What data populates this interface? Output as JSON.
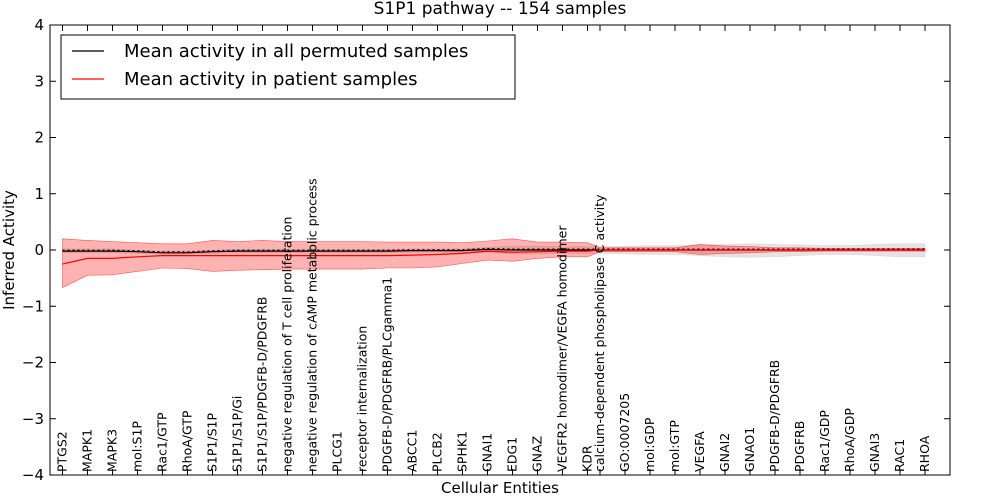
{
  "chart_data": {
    "type": "line",
    "title": "S1P1 pathway -- 154 samples",
    "xlabel": "Cellular Entities",
    "ylabel": "Inferred Activity",
    "ylim": [
      -4,
      4
    ],
    "yticks": [
      -4,
      -3,
      -2,
      -1,
      0,
      1,
      2,
      3,
      4
    ],
    "ytick_labels": [
      "−4",
      "−3",
      "−2",
      "−1",
      "0",
      "1",
      "2",
      "3",
      "4"
    ],
    "grid": false,
    "legend_position": "top-left",
    "categories": [
      "PTGS2",
      "MAPK1",
      "MAPK3",
      "mol:S1P",
      "Rac1/GTP",
      "RhoA/GTP",
      "S1P1/S1P",
      "S1P1/S1P/Gi",
      "S1P1/S1P/PDGFB-D/PDGFRB",
      "negative regulation of T cell proliferation",
      "negative regulation of cAMP metabolic process",
      "PLCG1",
      "receptor internalization",
      "PDGFB-D/PDGFRB/PLCgamma1",
      "ABCC1",
      "PLCB2",
      "SPHK1",
      "GNAI1",
      "EDG1",
      "GNAZ",
      "VEGFR2 homodimer/VEGFA homodimer",
      "KDR",
      "calcium-dependent phospholipase C activity",
      "GO:0007205",
      "mol:GDP",
      "mol:GTP",
      "VEGFA",
      "GNAI2",
      "GNAO1",
      "PDGFB-D/PDGFRB",
      "PDGFRB",
      "Rac1/GDP",
      "RhoA/GDP",
      "GNAI3",
      "RAC1",
      "RHOA"
    ],
    "x_positions": [
      0,
      1,
      2,
      3,
      4,
      5,
      6,
      7,
      8,
      9,
      10,
      11,
      12,
      13,
      14,
      15,
      16,
      17,
      18,
      19,
      20,
      21,
      21.5,
      22.5,
      23.5,
      24.5,
      25.5,
      26.5,
      27.5,
      28.5,
      29.5,
      30.5,
      31.5,
      32.5,
      33.5,
      34.5
    ],
    "series": [
      {
        "name": "Mean activity in all permuted samples",
        "color": "#000000",
        "values": [
          -0.02,
          -0.02,
          -0.02,
          -0.03,
          -0.05,
          -0.05,
          -0.03,
          -0.02,
          -0.02,
          -0.02,
          -0.02,
          -0.02,
          -0.02,
          -0.02,
          -0.01,
          -0.01,
          -0.01,
          0.01,
          0.0,
          0.0,
          0.0,
          0.0,
          0.0,
          0.0,
          0.0,
          0.0,
          0.0,
          0.0,
          0.0,
          0.0,
          0.0,
          0.0,
          0.0,
          0.0,
          0.0,
          0.0
        ],
        "lower": [
          -0.05,
          -0.05,
          -0.05,
          -0.06,
          -0.08,
          -0.08,
          -0.06,
          -0.05,
          -0.05,
          -0.05,
          -0.05,
          -0.05,
          -0.05,
          -0.05,
          -0.04,
          -0.04,
          -0.04,
          -0.05,
          -0.07,
          -0.07,
          -0.06,
          -0.06,
          -0.06,
          -0.07,
          -0.08,
          -0.08,
          -0.1,
          -0.12,
          -0.13,
          -0.12,
          -0.1,
          -0.08,
          -0.08,
          -0.1,
          -0.12,
          -0.12
        ],
        "upper": [
          0.02,
          0.02,
          0.02,
          0.0,
          -0.02,
          -0.02,
          0.0,
          0.01,
          0.01,
          0.01,
          0.01,
          0.01,
          0.01,
          0.01,
          0.02,
          0.02,
          0.02,
          0.05,
          0.07,
          0.07,
          0.06,
          0.06,
          0.06,
          0.07,
          0.08,
          0.08,
          0.09,
          0.1,
          0.11,
          0.1,
          0.09,
          0.08,
          0.08,
          0.1,
          0.11,
          0.11
        ]
      },
      {
        "name": "Mean activity in patient samples",
        "color": "#ff0000",
        "values": [
          -0.25,
          -0.15,
          -0.15,
          -0.12,
          -0.1,
          -0.1,
          -0.1,
          -0.1,
          -0.1,
          -0.1,
          -0.1,
          -0.1,
          -0.1,
          -0.1,
          -0.09,
          -0.08,
          -0.06,
          -0.02,
          -0.04,
          -0.03,
          -0.02,
          -0.02,
          0.0,
          0.0,
          0.0,
          0.0,
          0.0,
          0.0,
          0.0,
          0.0,
          0.0,
          0.0,
          0.0,
          0.0,
          0.0,
          0.0
        ],
        "lower": [
          -0.67,
          -0.45,
          -0.44,
          -0.38,
          -0.32,
          -0.33,
          -0.38,
          -0.36,
          -0.35,
          -0.34,
          -0.34,
          -0.34,
          -0.34,
          -0.32,
          -0.32,
          -0.3,
          -0.24,
          -0.18,
          -0.2,
          -0.15,
          -0.12,
          -0.12,
          -0.03,
          -0.03,
          -0.03,
          -0.03,
          -0.08,
          -0.06,
          -0.05,
          -0.03,
          -0.03,
          -0.02,
          -0.02,
          -0.02,
          -0.02,
          -0.02
        ],
        "upper": [
          0.2,
          0.17,
          0.15,
          0.13,
          0.11,
          0.11,
          0.17,
          0.15,
          0.17,
          0.15,
          0.15,
          0.15,
          0.15,
          0.14,
          0.14,
          0.14,
          0.13,
          0.16,
          0.2,
          0.14,
          0.14,
          0.13,
          0.04,
          0.04,
          0.04,
          0.04,
          0.1,
          0.07,
          0.06,
          0.04,
          0.04,
          0.03,
          0.03,
          0.03,
          0.03,
          0.03
        ]
      }
    ]
  }
}
